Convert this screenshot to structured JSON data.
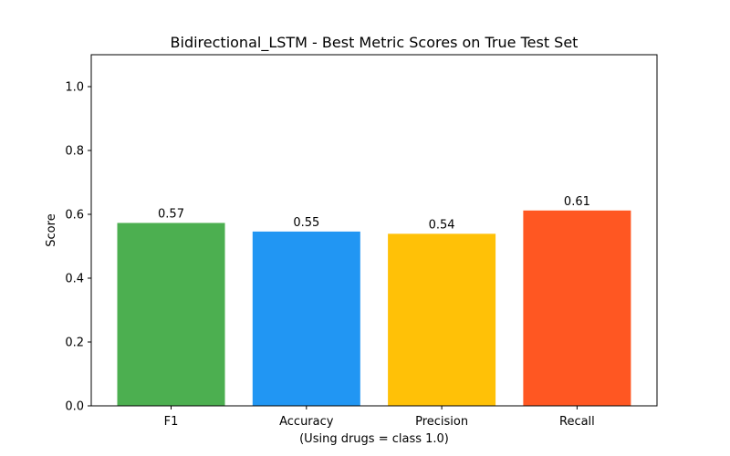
{
  "chart_data": {
    "type": "bar",
    "title": "Bidirectional_LSTM - Best Metric Scores on True Test Set",
    "xlabel": "(Using drugs = class 1.0)",
    "ylabel": "Score",
    "categories": [
      "F1",
      "Accuracy",
      "Precision",
      "Recall"
    ],
    "values": [
      0.573,
      0.546,
      0.539,
      0.612
    ],
    "data_labels": [
      "0.57",
      "0.55",
      "0.54",
      "0.61"
    ],
    "colors": [
      "#4CAF50",
      "#2196F3",
      "#FFC107",
      "#FF5722"
    ],
    "ylim": [
      0,
      1.1
    ],
    "yticks": [
      0.0,
      0.2,
      0.4,
      0.6,
      0.8,
      1.0
    ],
    "ytick_labels": [
      "0.0",
      "0.2",
      "0.4",
      "0.6",
      "0.8",
      "1.0"
    ],
    "grid": false,
    "legend": "none"
  }
}
